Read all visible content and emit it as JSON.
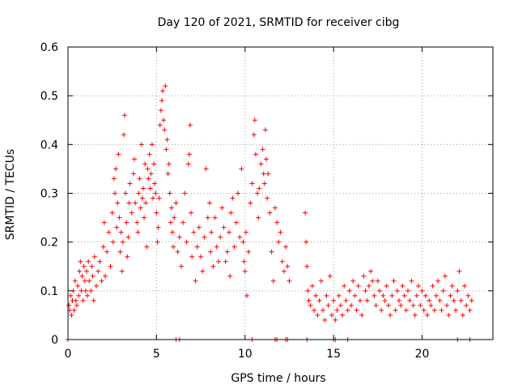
{
  "chart_data": {
    "type": "scatter",
    "title": "Day 120 of 2021, SRMTID for receiver cibg",
    "xlabel": "GPS time / hours",
    "ylabel": "SRMTID / TECUs",
    "xlim": [
      0,
      24
    ],
    "ylim": [
      0,
      0.6
    ],
    "xticks": [
      0,
      5,
      10,
      15,
      20
    ],
    "xtick_labels": [
      "0",
      "5",
      "10",
      "15",
      "20"
    ],
    "yticks": [
      0,
      0.1,
      0.2,
      0.3,
      0.4,
      0.5,
      0.6
    ],
    "ytick_labels": [
      "0",
      "0.1",
      "0.2",
      "0.3",
      "0.4",
      "0.5",
      "0.6"
    ],
    "grid": true,
    "marker": "+",
    "color": "#ff0000",
    "series": [
      {
        "name": "SRMTID",
        "points": [
          [
            0.05,
            0.07
          ],
          [
            0.1,
            0.06
          ],
          [
            0.15,
            0.09
          ],
          [
            0.2,
            0.05
          ],
          [
            0.25,
            0.08
          ],
          [
            0.3,
            0.1
          ],
          [
            0.35,
            0.06
          ],
          [
            0.4,
            0.12
          ],
          [
            0.45,
            0.08
          ],
          [
            0.5,
            0.07
          ],
          [
            0.55,
            0.11
          ],
          [
            0.6,
            0.09
          ],
          [
            0.65,
            0.14
          ],
          [
            0.7,
            0.16
          ],
          [
            0.75,
            0.1
          ],
          [
            0.8,
            0.13
          ],
          [
            0.85,
            0.08
          ],
          [
            0.9,
            0.15
          ],
          [
            0.95,
            0.12
          ],
          [
            1.0,
            0.1
          ],
          [
            1.05,
            0.14
          ],
          [
            1.1,
            0.09
          ],
          [
            1.15,
            0.16
          ],
          [
            1.2,
            0.12
          ],
          [
            1.3,
            0.1
          ],
          [
            1.35,
            0.15
          ],
          [
            1.4,
            0.13
          ],
          [
            1.45,
            0.08
          ],
          [
            1.5,
            0.17
          ],
          [
            1.6,
            0.11
          ],
          [
            1.7,
            0.14
          ],
          [
            1.8,
            0.16
          ],
          [
            1.9,
            0.12
          ],
          [
            2.0,
            0.19
          ],
          [
            2.05,
            0.24
          ],
          [
            2.1,
            0.13
          ],
          [
            2.2,
            0.18
          ],
          [
            2.3,
            0.22
          ],
          [
            2.4,
            0.15
          ],
          [
            2.5,
            0.26
          ],
          [
            2.55,
            0.2
          ],
          [
            2.6,
            0.33
          ],
          [
            2.65,
            0.3
          ],
          [
            2.7,
            0.35
          ],
          [
            2.75,
            0.23
          ],
          [
            2.8,
            0.28
          ],
          [
            2.85,
            0.38
          ],
          [
            2.9,
            0.25
          ],
          [
            2.95,
            0.18
          ],
          [
            3.0,
            0.22
          ],
          [
            3.05,
            0.14
          ],
          [
            3.1,
            0.2
          ],
          [
            3.15,
            0.42
          ],
          [
            3.2,
            0.46
          ],
          [
            3.25,
            0.3
          ],
          [
            3.3,
            0.24
          ],
          [
            3.35,
            0.17
          ],
          [
            3.4,
            0.21
          ],
          [
            3.45,
            0.28
          ],
          [
            3.5,
            0.32
          ],
          [
            3.6,
            0.26
          ],
          [
            3.7,
            0.34
          ],
          [
            3.75,
            0.37
          ],
          [
            3.8,
            0.28
          ],
          [
            3.9,
            0.24
          ],
          [
            3.95,
            0.22
          ],
          [
            4.0,
            0.3
          ],
          [
            4.05,
            0.33
          ],
          [
            4.1,
            0.27
          ],
          [
            4.15,
            0.4
          ],
          [
            4.2,
            0.29
          ],
          [
            4.25,
            0.31
          ],
          [
            4.3,
            0.25
          ],
          [
            4.35,
            0.36
          ],
          [
            4.4,
            0.28
          ],
          [
            4.45,
            0.19
          ],
          [
            4.5,
            0.35
          ],
          [
            4.55,
            0.33
          ],
          [
            4.6,
            0.38
          ],
          [
            4.65,
            0.31
          ],
          [
            4.7,
            0.34
          ],
          [
            4.75,
            0.4
          ],
          [
            4.8,
            0.29
          ],
          [
            4.85,
            0.36
          ],
          [
            4.9,
            0.32
          ],
          [
            4.95,
            0.3
          ],
          [
            5.0,
            0.26
          ],
          [
            5.05,
            0.2
          ],
          [
            5.1,
            0.23
          ],
          [
            5.15,
            0.29
          ],
          [
            5.2,
            0.44
          ],
          [
            5.25,
            0.47
          ],
          [
            5.3,
            0.49
          ],
          [
            5.35,
            0.51
          ],
          [
            5.4,
            0.45
          ],
          [
            5.45,
            0.43
          ],
          [
            5.5,
            0.52
          ],
          [
            5.55,
            0.39
          ],
          [
            5.6,
            0.41
          ],
          [
            5.65,
            0.34
          ],
          [
            5.7,
            0.36
          ],
          [
            5.75,
            0.3
          ],
          [
            5.8,
            0.24
          ],
          [
            5.85,
            0.27
          ],
          [
            5.9,
            0.22
          ],
          [
            5.95,
            0.19
          ],
          [
            6.0,
            0.25
          ],
          [
            6.1,
            0.28
          ],
          [
            6.2,
            0.18
          ],
          [
            6.3,
            0.21
          ],
          [
            6.4,
            0.15
          ],
          [
            6.5,
            0.24
          ],
          [
            6.6,
            0.3
          ],
          [
            6.7,
            0.2
          ],
          [
            6.8,
            0.36
          ],
          [
            6.85,
            0.38
          ],
          [
            6.9,
            0.44
          ],
          [
            6.95,
            0.26
          ],
          [
            7.0,
            0.17
          ],
          [
            7.1,
            0.22
          ],
          [
            7.2,
            0.12
          ],
          [
            7.3,
            0.19
          ],
          [
            7.4,
            0.23
          ],
          [
            7.5,
            0.17
          ],
          [
            7.6,
            0.14
          ],
          [
            7.7,
            0.21
          ],
          [
            7.8,
            0.35
          ],
          [
            7.9,
            0.25
          ],
          [
            8.0,
            0.28
          ],
          [
            8.05,
            0.18
          ],
          [
            8.1,
            0.22
          ],
          [
            8.2,
            0.15
          ],
          [
            8.3,
            0.25
          ],
          [
            8.4,
            0.19
          ],
          [
            8.5,
            0.16
          ],
          [
            8.6,
            0.21
          ],
          [
            8.7,
            0.27
          ],
          [
            8.8,
            0.23
          ],
          [
            8.9,
            0.16
          ],
          [
            9.0,
            0.18
          ],
          [
            9.1,
            0.22
          ],
          [
            9.15,
            0.13
          ],
          [
            9.2,
            0.26
          ],
          [
            9.3,
            0.29
          ],
          [
            9.4,
            0.19
          ],
          [
            9.5,
            0.24
          ],
          [
            9.6,
            0.3
          ],
          [
            9.7,
            0.21
          ],
          [
            9.8,
            0.35
          ],
          [
            9.9,
            0.2
          ],
          [
            9.95,
            0.16
          ],
          [
            10.0,
            0.14
          ],
          [
            10.05,
            0.22
          ],
          [
            10.1,
            0.09
          ],
          [
            10.2,
            0.18
          ],
          [
            10.3,
            0.28
          ],
          [
            10.4,
            0.32
          ],
          [
            10.5,
            0.42
          ],
          [
            10.55,
            0.45
          ],
          [
            10.6,
            0.38
          ],
          [
            10.7,
            0.3
          ],
          [
            10.75,
            0.25
          ],
          [
            10.8,
            0.31
          ],
          [
            10.9,
            0.36
          ],
          [
            11.0,
            0.39
          ],
          [
            11.05,
            0.34
          ],
          [
            11.1,
            0.32
          ],
          [
            11.15,
            0.43
          ],
          [
            11.2,
            0.37
          ],
          [
            11.25,
            0.29
          ],
          [
            11.3,
            0.34
          ],
          [
            11.4,
            0.26
          ],
          [
            11.5,
            0.18
          ],
          [
            11.6,
            0.12
          ],
          [
            11.7,
            0.27
          ],
          [
            11.8,
            0.24
          ],
          [
            11.9,
            0.2
          ],
          [
            12.0,
            0.22
          ],
          [
            12.1,
            0.16
          ],
          [
            12.2,
            0.14
          ],
          [
            12.3,
            0.19
          ],
          [
            12.4,
            0.15
          ],
          [
            12.5,
            0.12
          ],
          [
            13.4,
            0.26
          ],
          [
            13.45,
            0.2
          ],
          [
            13.5,
            0.15
          ],
          [
            13.55,
            0.1
          ],
          [
            13.6,
            0.08
          ],
          [
            13.7,
            0.07
          ],
          [
            13.8,
            0.11
          ],
          [
            13.9,
            0.06
          ],
          [
            14.0,
            0.09
          ],
          [
            14.1,
            0.05
          ],
          [
            14.2,
            0.08
          ],
          [
            14.3,
            0.12
          ],
          [
            14.4,
            0.06
          ],
          [
            14.5,
            0.04
          ],
          [
            14.6,
            0.09
          ],
          [
            14.7,
            0.07
          ],
          [
            14.8,
            0.13
          ],
          [
            14.9,
            0.05
          ],
          [
            15.0,
            0.08
          ],
          [
            15.1,
            0.04
          ],
          [
            15.2,
            0.06
          ],
          [
            15.3,
            0.09
          ],
          [
            15.4,
            0.07
          ],
          [
            15.5,
            0.05
          ],
          [
            15.6,
            0.11
          ],
          [
            15.7,
            0.08
          ],
          [
            15.8,
            0.06
          ],
          [
            15.9,
            0.1
          ],
          [
            16.0,
            0.07
          ],
          [
            16.1,
            0.12
          ],
          [
            16.2,
            0.09
          ],
          [
            16.3,
            0.06
          ],
          [
            16.4,
            0.11
          ],
          [
            16.5,
            0.08
          ],
          [
            16.6,
            0.05
          ],
          [
            16.7,
            0.13
          ],
          [
            16.8,
            0.1
          ],
          [
            16.9,
            0.08
          ],
          [
            17.0,
            0.11
          ],
          [
            17.1,
            0.14
          ],
          [
            17.2,
            0.12
          ],
          [
            17.3,
            0.09
          ],
          [
            17.4,
            0.07
          ],
          [
            17.5,
            0.12
          ],
          [
            17.6,
            0.1
          ],
          [
            17.7,
            0.06
          ],
          [
            17.8,
            0.09
          ],
          [
            17.9,
            0.08
          ],
          [
            18.0,
            0.11
          ],
          [
            18.1,
            0.07
          ],
          [
            18.2,
            0.05
          ],
          [
            18.3,
            0.09
          ],
          [
            18.4,
            0.12
          ],
          [
            18.5,
            0.06
          ],
          [
            18.6,
            0.1
          ],
          [
            18.7,
            0.08
          ],
          [
            18.8,
            0.07
          ],
          [
            18.9,
            0.11
          ],
          [
            19.0,
            0.09
          ],
          [
            19.1,
            0.06
          ],
          [
            19.2,
            0.1
          ],
          [
            19.3,
            0.08
          ],
          [
            19.4,
            0.12
          ],
          [
            19.5,
            0.07
          ],
          [
            19.6,
            0.05
          ],
          [
            19.7,
            0.09
          ],
          [
            19.8,
            0.11
          ],
          [
            19.9,
            0.07
          ],
          [
            20.0,
            0.1
          ],
          [
            20.1,
            0.06
          ],
          [
            20.2,
            0.09
          ],
          [
            20.3,
            0.05
          ],
          [
            20.4,
            0.08
          ],
          [
            20.5,
            0.07
          ],
          [
            20.6,
            0.11
          ],
          [
            20.7,
            0.06
          ],
          [
            20.8,
            0.09
          ],
          [
            20.9,
            0.12
          ],
          [
            21.0,
            0.08
          ],
          [
            21.1,
            0.06
          ],
          [
            21.2,
            0.1
          ],
          [
            21.3,
            0.13
          ],
          [
            21.4,
            0.07
          ],
          [
            21.5,
            0.05
          ],
          [
            21.6,
            0.09
          ],
          [
            21.7,
            0.11
          ],
          [
            21.8,
            0.08
          ],
          [
            21.9,
            0.06
          ],
          [
            22.0,
            0.1
          ],
          [
            22.1,
            0.14
          ],
          [
            22.2,
            0.08
          ],
          [
            22.3,
            0.05
          ],
          [
            22.4,
            0.11
          ],
          [
            22.5,
            0.07
          ],
          [
            22.6,
            0.09
          ],
          [
            22.7,
            0.06
          ],
          [
            22.8,
            0.08
          ],
          [
            6.1,
            0.0
          ],
          [
            6.3,
            0.0
          ],
          [
            10.4,
            0.0
          ],
          [
            11.7,
            0.0
          ],
          [
            11.8,
            0.0
          ],
          [
            12.3,
            0.0
          ],
          [
            12.4,
            0.0
          ],
          [
            13.5,
            0.0
          ],
          [
            15.0,
            0.0
          ],
          [
            15.1,
            0.0
          ],
          [
            15.8,
            0.0
          ],
          [
            22.0,
            0.0
          ],
          [
            22.7,
            0.0
          ],
          [
            0.0,
            0.0
          ]
        ]
      }
    ]
  }
}
